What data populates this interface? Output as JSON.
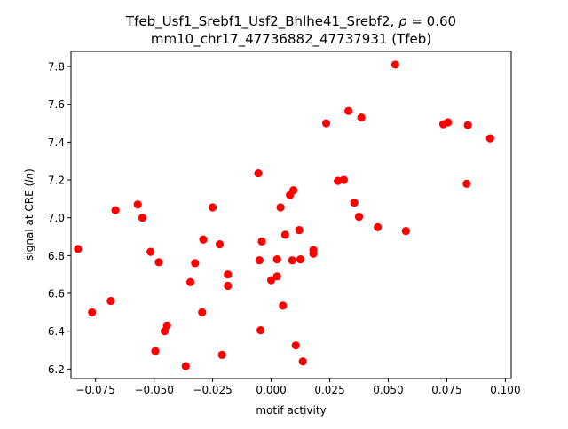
{
  "chart_data": {
    "type": "scatter",
    "title_line1_prefix": "Tfeb_Usf1_Srebf1_Usf2_Bhlhe41_Srebf2, ",
    "title_line1_rho": "ρ",
    "title_line1_suffix": " = 0.60",
    "title_line2": "mm10_chr17_47736882_47737931 (Tfeb)",
    "xlabel": "motif activity",
    "ylabel_prefix": "signal at CRE (",
    "ylabel_italic": "ln",
    "ylabel_suffix": ")",
    "xlim": [
      -0.0855,
      0.1025
    ],
    "ylim": [
      6.15,
      7.88
    ],
    "xticks": [
      {
        "value": -0.075,
        "label": "−0.075"
      },
      {
        "value": -0.05,
        "label": "−0.050"
      },
      {
        "value": -0.025,
        "label": "−0.025"
      },
      {
        "value": 0.0,
        "label": "0.000"
      },
      {
        "value": 0.025,
        "label": "0.025"
      },
      {
        "value": 0.05,
        "label": "0.050"
      },
      {
        "value": 0.075,
        "label": "0.075"
      },
      {
        "value": 0.1,
        "label": "0.100"
      }
    ],
    "yticks": [
      {
        "value": 6.2,
        "label": "6.2"
      },
      {
        "value": 6.4,
        "label": "6.4"
      },
      {
        "value": 6.6,
        "label": "6.6"
      },
      {
        "value": 6.8,
        "label": "6.8"
      },
      {
        "value": 7.0,
        "label": "7.0"
      },
      {
        "value": 7.2,
        "label": "7.2"
      },
      {
        "value": 7.4,
        "label": "7.4"
      },
      {
        "value": 7.6,
        "label": "7.6"
      },
      {
        "value": 7.8,
        "label": "7.8"
      }
    ],
    "grid": false,
    "marker_color": "#ff0000",
    "points": [
      {
        "x": -0.0825,
        "y": 6.835
      },
      {
        "x": -0.0765,
        "y": 6.5
      },
      {
        "x": -0.0685,
        "y": 6.56
      },
      {
        "x": -0.0665,
        "y": 7.04
      },
      {
        "x": -0.057,
        "y": 7.07
      },
      {
        "x": -0.055,
        "y": 7.0
      },
      {
        "x": -0.0515,
        "y": 6.82
      },
      {
        "x": -0.0495,
        "y": 6.295
      },
      {
        "x": -0.048,
        "y": 6.765
      },
      {
        "x": -0.0455,
        "y": 6.4
      },
      {
        "x": -0.0445,
        "y": 6.43
      },
      {
        "x": -0.0365,
        "y": 6.215
      },
      {
        "x": -0.0345,
        "y": 6.66
      },
      {
        "x": -0.0325,
        "y": 6.76
      },
      {
        "x": -0.0295,
        "y": 6.5
      },
      {
        "x": -0.029,
        "y": 6.885
      },
      {
        "x": -0.025,
        "y": 7.055
      },
      {
        "x": -0.022,
        "y": 6.86
      },
      {
        "x": -0.021,
        "y": 6.275
      },
      {
        "x": -0.0185,
        "y": 6.7
      },
      {
        "x": -0.0185,
        "y": 6.64
      },
      {
        "x": -0.0055,
        "y": 7.235
      },
      {
        "x": -0.005,
        "y": 6.775
      },
      {
        "x": -0.0045,
        "y": 6.405
      },
      {
        "x": -0.004,
        "y": 6.875
      },
      {
        "x": 0.0,
        "y": 6.67
      },
      {
        "x": 0.0025,
        "y": 6.69
      },
      {
        "x": 0.0025,
        "y": 6.78
      },
      {
        "x": 0.004,
        "y": 7.055
      },
      {
        "x": 0.005,
        "y": 6.535
      },
      {
        "x": 0.006,
        "y": 6.91
      },
      {
        "x": 0.008,
        "y": 7.12
      },
      {
        "x": 0.009,
        "y": 6.775
      },
      {
        "x": 0.0095,
        "y": 7.145
      },
      {
        "x": 0.0105,
        "y": 6.325
      },
      {
        "x": 0.012,
        "y": 6.935
      },
      {
        "x": 0.0125,
        "y": 6.78
      },
      {
        "x": 0.0135,
        "y": 6.24
      },
      {
        "x": 0.018,
        "y": 6.83
      },
      {
        "x": 0.018,
        "y": 6.81
      },
      {
        "x": 0.0235,
        "y": 7.5
      },
      {
        "x": 0.0285,
        "y": 7.195
      },
      {
        "x": 0.031,
        "y": 7.2
      },
      {
        "x": 0.033,
        "y": 7.565
      },
      {
        "x": 0.0355,
        "y": 7.08
      },
      {
        "x": 0.0375,
        "y": 7.005
      },
      {
        "x": 0.0385,
        "y": 7.53
      },
      {
        "x": 0.0455,
        "y": 6.95
      },
      {
        "x": 0.053,
        "y": 7.81
      },
      {
        "x": 0.0575,
        "y": 6.93
      },
      {
        "x": 0.0735,
        "y": 7.495
      },
      {
        "x": 0.0755,
        "y": 7.505
      },
      {
        "x": 0.0835,
        "y": 7.18
      },
      {
        "x": 0.084,
        "y": 7.49
      },
      {
        "x": 0.0935,
        "y": 7.42
      }
    ]
  }
}
